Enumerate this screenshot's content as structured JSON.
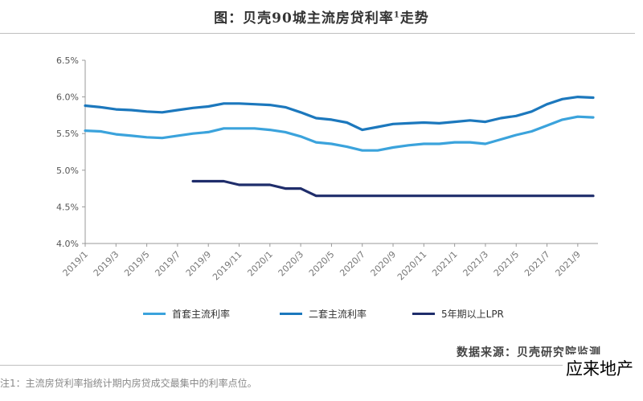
{
  "header": {
    "title": "图：贝壳90城主流房贷利率",
    "title_sup": "1",
    "title_tail": "走势"
  },
  "source": "数据来源：贝壳研究院监测",
  "footnote": "注1：主流房贷利率指统计期内房贷成交最集中的利率点位。",
  "watermark": "应来地产",
  "colors": {
    "first": "#3ba3dc",
    "second": "#1c78bd",
    "lpr": "#1f2d6b"
  },
  "chart_data": {
    "type": "line",
    "ylim": [
      4.0,
      6.5
    ],
    "yticks": [
      "4.0%",
      "4.5%",
      "5.0%",
      "5.5%",
      "6.0%",
      "6.5%"
    ],
    "ytick_values": [
      4.0,
      4.5,
      5.0,
      5.5,
      6.0,
      6.5
    ],
    "x": [
      "2019/1",
      "2019/2",
      "2019/3",
      "2019/4",
      "2019/5",
      "2019/6",
      "2019/7",
      "2019/8",
      "2019/9",
      "2019/10",
      "2019/11",
      "2019/12",
      "2020/1",
      "2020/2",
      "2020/3",
      "2020/4",
      "2020/5",
      "2020/6",
      "2020/7",
      "2020/8",
      "2020/9",
      "2020/10",
      "2020/11",
      "2020/12",
      "2021/1",
      "2021/2",
      "2021/3",
      "2021/4",
      "2021/5",
      "2021/6",
      "2021/7",
      "2021/8",
      "2021/9",
      "2021/10"
    ],
    "xtick_labels": [
      "2019/1",
      "2019/3",
      "2019/5",
      "2019/7",
      "2019/9",
      "2019/11",
      "2020/1",
      "2020/3",
      "2020/5",
      "2020/7",
      "2020/9",
      "2020/11",
      "2021/1",
      "2021/3",
      "2021/5",
      "2021/7",
      "2021/9"
    ],
    "grid": false,
    "legend": "bottom",
    "series": [
      {
        "name": "首套主流利率",
        "color_key": "first",
        "values": [
          5.54,
          5.53,
          5.49,
          5.47,
          5.45,
          5.44,
          5.47,
          5.5,
          5.52,
          5.57,
          5.57,
          5.57,
          5.55,
          5.52,
          5.46,
          5.38,
          5.36,
          5.32,
          5.27,
          5.27,
          5.31,
          5.34,
          5.36,
          5.36,
          5.38,
          5.38,
          5.36,
          5.42,
          5.48,
          5.53,
          5.61,
          5.69,
          5.73,
          5.72
        ]
      },
      {
        "name": "二套主流利率",
        "color_key": "second",
        "values": [
          5.88,
          5.86,
          5.83,
          5.82,
          5.8,
          5.79,
          5.82,
          5.85,
          5.87,
          5.91,
          5.91,
          5.9,
          5.89,
          5.86,
          5.79,
          5.71,
          5.69,
          5.65,
          5.55,
          5.59,
          5.63,
          5.64,
          5.65,
          5.64,
          5.66,
          5.68,
          5.66,
          5.71,
          5.74,
          5.8,
          5.9,
          5.97,
          6.0,
          5.99
        ]
      },
      {
        "name": "5年期以上LPR",
        "color_key": "lpr",
        "values": [
          null,
          null,
          null,
          null,
          null,
          null,
          null,
          4.85,
          4.85,
          4.85,
          4.8,
          4.8,
          4.8,
          4.75,
          4.75,
          4.65,
          4.65,
          4.65,
          4.65,
          4.65,
          4.65,
          4.65,
          4.65,
          4.65,
          4.65,
          4.65,
          4.65,
          4.65,
          4.65,
          4.65,
          4.65,
          4.65,
          4.65,
          4.65
        ]
      }
    ]
  }
}
